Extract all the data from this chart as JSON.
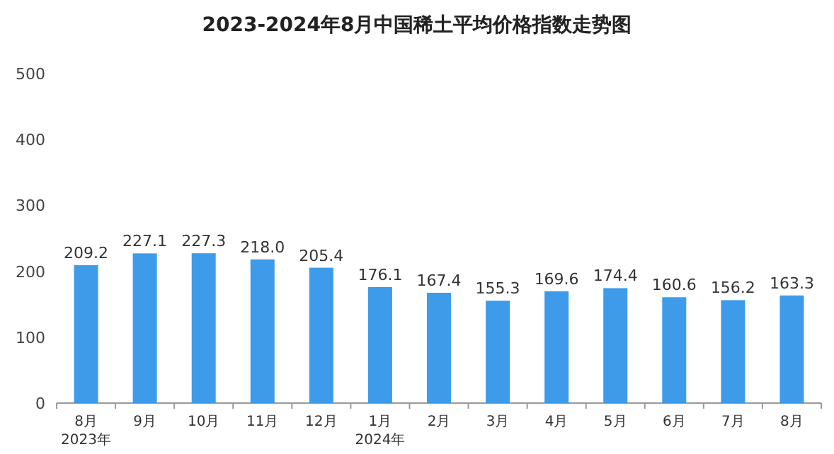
{
  "chart_data": {
    "type": "bar",
    "title": "2023-2024年8月中国稀土平均价格指数走势图",
    "categories": [
      "8月\n2023年",
      "9月",
      "10月",
      "11月",
      "12月",
      "1月\n2024年",
      "2月",
      "3月",
      "4月",
      "5月",
      "6月",
      "7月",
      "8月"
    ],
    "values": [
      209.2,
      227.1,
      227.3,
      218.0,
      205.4,
      176.1,
      167.4,
      155.3,
      169.6,
      174.4,
      160.6,
      156.2,
      163.3
    ],
    "value_labels": [
      "209.2",
      "227.1",
      "227.3",
      "218.0",
      "205.4",
      "176.1",
      "167.4",
      "155.3",
      "169.6",
      "174.4",
      "160.6",
      "156.2",
      "163.3"
    ],
    "color": "#3d9be9",
    "ylim": [
      0,
      500
    ],
    "yticks": [
      0,
      100,
      200,
      300,
      400,
      500
    ],
    "grid": false
  }
}
